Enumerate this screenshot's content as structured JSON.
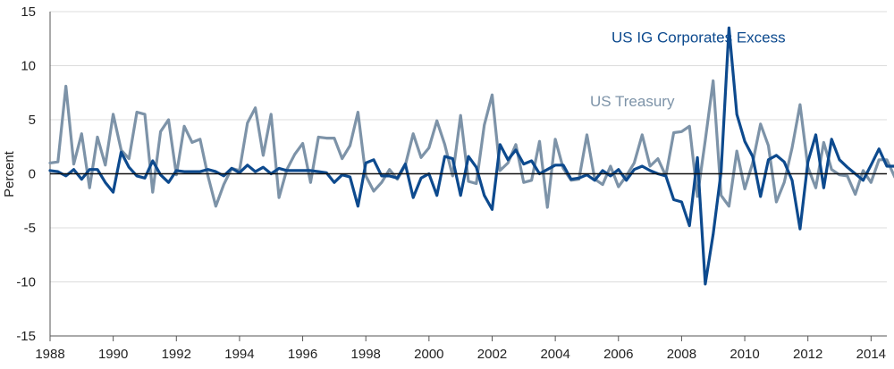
{
  "chart_data": {
    "type": "line",
    "title": "",
    "xlabel": "",
    "ylabel": "Percent",
    "xlim": [
      1988,
      2014.5
    ],
    "ylim": [
      -15,
      15
    ],
    "x_ticks": [
      {
        "value": 1988,
        "label": "1988"
      },
      {
        "value": 1990,
        "label": "1990"
      },
      {
        "value": 1992,
        "label": "1992"
      },
      {
        "value": 1994,
        "label": "1994"
      },
      {
        "value": 1996,
        "label": "1996"
      },
      {
        "value": 1998,
        "label": "1998"
      },
      {
        "value": 2000,
        "label": "2000"
      },
      {
        "value": 2002,
        "label": "2002"
      },
      {
        "value": 2004,
        "label": "2004"
      },
      {
        "value": 2006,
        "label": "2006"
      },
      {
        "value": 2008,
        "label": "2008"
      },
      {
        "value": 2010,
        "label": "2010"
      },
      {
        "value": 2012,
        "label": "2012"
      },
      {
        "value": 2014,
        "label": "2014"
      }
    ],
    "y_ticks": [
      {
        "value": 15,
        "label": "15"
      },
      {
        "value": 10,
        "label": "10"
      },
      {
        "value": 5,
        "label": "5"
      },
      {
        "value": 0,
        "label": "0"
      },
      {
        "value": -5,
        "label": "-5"
      },
      {
        "value": -10,
        "label": "-10"
      },
      {
        "value": -15,
        "label": "-15"
      }
    ],
    "grid": true,
    "zero_line": true,
    "series": [
      {
        "name": "US Treasury",
        "color": "#7d93a8",
        "start": 1988.0,
        "step": 0.25,
        "values": [
          1.0,
          1.1,
          8.1,
          0.9,
          3.7,
          -1.3,
          3.4,
          0.8,
          5.5,
          2.2,
          1.4,
          5.7,
          5.5,
          -1.7,
          3.9,
          5.0,
          -0.1,
          4.4,
          2.9,
          3.2,
          -0.2,
          -3.0,
          -1.0,
          0.5,
          0.3,
          4.7,
          6.1,
          1.7,
          5.5,
          -2.2,
          0.4,
          1.8,
          2.8,
          -0.8,
          3.4,
          3.3,
          3.3,
          1.4,
          2.6,
          5.7,
          -0.2,
          -1.6,
          -0.8,
          0.4,
          -0.5,
          0.8,
          3.7,
          1.5,
          2.4,
          4.9,
          2.7,
          -0.2,
          5.4,
          -0.7,
          -0.9,
          4.5,
          7.3,
          0.3,
          1.0,
          2.7,
          -0.8,
          -0.6,
          3.0,
          -3.1,
          3.2,
          0.5,
          -0.6,
          -0.5,
          3.6,
          -0.5,
          -1.0,
          0.7,
          -1.2,
          -0.2,
          1.0,
          3.6,
          0.7,
          1.4,
          -0.2,
          3.8,
          3.9,
          4.4,
          -2.1,
          3.1,
          8.6,
          -2.0,
          -3.0,
          2.1,
          -1.4,
          1.0,
          4.6,
          2.6,
          -2.6,
          -0.8,
          2.4,
          6.4,
          0.6,
          -1.3,
          2.9,
          0.4,
          -0.1,
          -0.2,
          -1.9,
          0.3,
          -0.8,
          1.3,
          1.3,
          -0.3,
          1.9,
          1.6
        ]
      },
      {
        "name": "US IG Corporates Excess",
        "color": "#0d4a8e",
        "start": 1988.0,
        "step": 0.25,
        "values": [
          0.3,
          0.2,
          -0.2,
          0.4,
          -0.5,
          0.4,
          0.4,
          -0.8,
          -1.7,
          2.0,
          0.6,
          -0.2,
          -0.4,
          1.2,
          -0.1,
          -0.8,
          0.3,
          0.2,
          0.2,
          0.2,
          0.4,
          0.2,
          -0.2,
          0.5,
          0.1,
          0.8,
          0.2,
          0.6,
          0.0,
          0.5,
          0.3,
          0.3,
          0.3,
          0.3,
          0.2,
          0.1,
          -0.8,
          -0.1,
          -0.3,
          -3.0,
          1.0,
          1.3,
          -0.2,
          -0.2,
          -0.4,
          0.9,
          -2.2,
          -0.4,
          0.0,
          -2.0,
          1.6,
          1.4,
          -2.0,
          1.6,
          0.6,
          -2.0,
          -3.3,
          2.7,
          1.3,
          2.2,
          0.9,
          1.2,
          0.0,
          0.4,
          0.8,
          0.8,
          -0.5,
          -0.4,
          -0.1,
          -0.6,
          0.3,
          -0.2,
          0.4,
          -0.6,
          0.4,
          0.7,
          0.3,
          0.0,
          -0.2,
          -2.4,
          -2.6,
          -4.8,
          1.5,
          -10.2,
          -5.6,
          0.2,
          13.5,
          5.5,
          3.0,
          1.6,
          -2.1,
          1.3,
          1.7,
          1.1,
          -0.6,
          -5.1,
          1.1,
          3.6,
          -1.3,
          3.2,
          1.3,
          0.6,
          0.0,
          -0.6,
          0.8,
          2.3,
          0.7,
          0.7,
          -0.8,
          -1.1,
          0.3
        ]
      }
    ],
    "annotations": [
      {
        "text": "US IG Corporates Excess",
        "series": "US IG Corporates Excess",
        "color": "#0d4a8e",
        "x": 2005.78,
        "y": 12.15,
        "anchor": "start"
      },
      {
        "text": "US Treasury",
        "series": "US Treasury",
        "color": "#7d93a8",
        "x": 2005.1,
        "y": 6.25,
        "anchor": "start"
      }
    ]
  }
}
